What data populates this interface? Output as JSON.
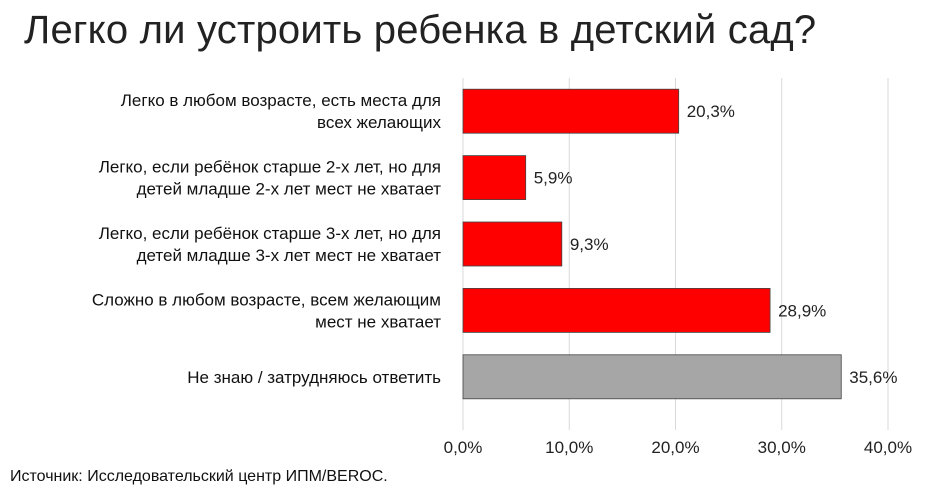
{
  "title": "Легко ли устроить ребенка в детский сад?",
  "source": "Источник: Исследовательский центр ИПМ/BEROC.",
  "chart_data": {
    "type": "bar",
    "orientation": "horizontal",
    "categories": [
      [
        "Легко в любом возрасте, есть места для",
        "всех желающих"
      ],
      [
        "Легко, если ребёнок старше 2-х лет, но для",
        "детей младше 2-х лет мест не хватает"
      ],
      [
        "Легко, если ребёнок старше 3-х лет, но для",
        "детей младше 3-х лет мест не хватает"
      ],
      [
        "Сложно в любом возрасте, всем желающим",
        "мест не хватает"
      ],
      [
        "Не знаю / затрудняюсь ответить"
      ]
    ],
    "values": [
      20.3,
      5.9,
      9.3,
      28.9,
      35.6
    ],
    "value_labels": [
      "20,3%",
      "5,9%",
      "9,3%",
      "28,9%",
      "35,6%"
    ],
    "bar_colors": [
      "#ff0000",
      "#ff0000",
      "#ff0000",
      "#ff0000",
      "#a6a6a6"
    ],
    "xlim": [
      0,
      40
    ],
    "xticks": [
      0,
      10,
      20,
      30,
      40
    ],
    "xtick_labels": [
      "0,0%",
      "10,0%",
      "20,0%",
      "30,0%",
      "40,0%"
    ],
    "grid": true,
    "gridline_color": "#d9d9d9",
    "bar_outline_color": "#444444"
  }
}
